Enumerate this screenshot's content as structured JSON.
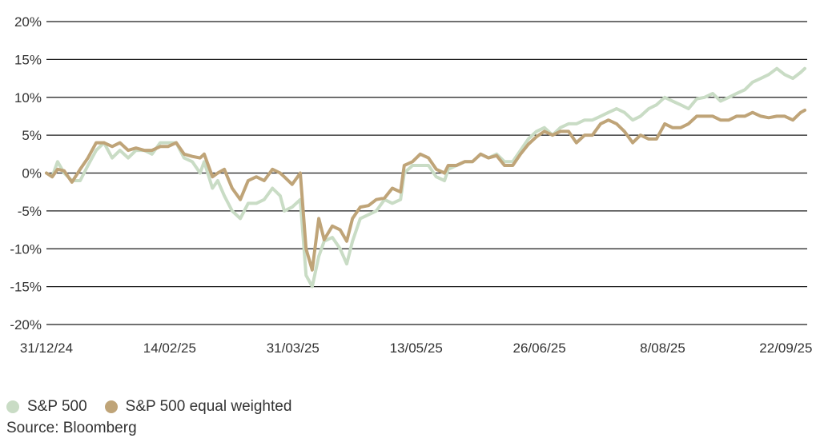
{
  "chart_data": {
    "type": "line",
    "title": "",
    "xlabel": "",
    "ylabel": "",
    "ylim": [
      -20,
      20
    ],
    "yticks": [
      20,
      15,
      10,
      5,
      0,
      -5,
      -10,
      -15,
      -20
    ],
    "ytick_labels": [
      "20%",
      "15%",
      "10%",
      "5%",
      "0%",
      "-5%",
      "-10%",
      "-15%",
      "-20%"
    ],
    "x_unit": "trading days since 31/12/24",
    "xlim": [
      0,
      184.6
    ],
    "xticks": [
      0,
      30,
      60,
      90,
      120,
      150,
      180
    ],
    "xtick_labels": [
      "31/12/24",
      "14/02/25",
      "31/03/25",
      "13/05/25",
      "26/06/25",
      "8/08/25",
      "22/09/25"
    ],
    "grid": true,
    "legend_position": "bottom-left",
    "x": [
      0,
      1.4,
      2.7,
      4.3,
      6.2,
      8.2,
      10.1,
      12.1,
      14,
      16,
      17.9,
      19.9,
      21.8,
      23.8,
      25.7,
      27.7,
      29.6,
      31.6,
      33.5,
      35.5,
      37.4,
      38.4,
      40.4,
      41.7,
      43.3,
      45.2,
      47.2,
      49.1,
      51.1,
      53,
      55,
      56.9,
      57.9,
      59.8,
      61.8,
      63.2,
      64.7,
      66.3,
      67.6,
      69.6,
      71.5,
      73.1,
      74.5,
      76.4,
      78.4,
      80.3,
      82.3,
      84.2,
      86.2,
      87.1,
      89.1,
      91,
      93,
      94.9,
      96.9,
      97.8,
      99.8,
      101.8,
      103.7,
      105.7,
      107.6,
      109.6,
      111.5,
      113.5,
      115.4,
      117.3,
      119.3,
      121.2,
      123.2,
      125.1,
      127.1,
      129,
      131,
      132.9,
      134.9,
      136.8,
      138.8,
      140.7,
      142.7,
      144.6,
      146.6,
      148.5,
      150.5,
      152.4,
      154.4,
      156.3,
      158.3,
      160.2,
      162.2,
      164.1,
      166.1,
      168,
      170,
      171.9,
      173.9,
      175.8,
      177.8,
      179.7,
      181.7,
      183.6,
      184.6
    ],
    "series": [
      {
        "name": "S&P 500",
        "color": "#c9dcc5",
        "values": [
          0,
          -0.5,
          1.5,
          0,
          -1,
          -1,
          1,
          3,
          4,
          2,
          3,
          2,
          3,
          3,
          2.5,
          4,
          4,
          4,
          2,
          1.5,
          0,
          1.5,
          -2,
          -1,
          -3,
          -5,
          -6,
          -4,
          -4,
          -3.5,
          -2,
          -3,
          -5,
          -4.5,
          -3.5,
          -13.5,
          -15,
          -11,
          -9,
          -8.5,
          -10,
          -12,
          -9,
          -6,
          -5.5,
          -5,
          -3.5,
          -4,
          -3.5,
          0,
          1,
          1,
          1,
          -0.5,
          -1,
          0.5,
          1,
          1.5,
          1.5,
          2.5,
          2,
          2.5,
          1.5,
          1.5,
          3,
          4.5,
          5.5,
          6,
          5,
          6,
          6.5,
          6.5,
          7,
          7,
          7.5,
          8,
          8.5,
          8,
          7,
          7.5,
          8.5,
          9,
          10,
          9.5,
          9,
          8.5,
          9.8,
          10,
          10.5,
          9.5,
          10,
          10.5,
          11,
          12,
          12.5,
          13,
          13.8,
          13,
          12.5,
          13.3,
          13.8
        ]
      },
      {
        "name": "S&P 500 equal weighted",
        "color": "#bfa478",
        "values": [
          0,
          -0.5,
          0.5,
          0.3,
          -1.2,
          0.5,
          2,
          4,
          4,
          3.5,
          4,
          3,
          3.3,
          3,
          3,
          3.5,
          3.5,
          4,
          2.5,
          2.2,
          2,
          2.5,
          -0.5,
          0,
          0.5,
          -2,
          -3.5,
          -1,
          -0.5,
          -1,
          0.5,
          0,
          -0.5,
          -1.5,
          0,
          -10,
          -12.8,
          -6,
          -8.8,
          -7,
          -7.5,
          -9,
          -6,
          -4.5,
          -4.3,
          -3.5,
          -3.3,
          -2,
          -2.5,
          1,
          1.5,
          2.5,
          2,
          0.5,
          0,
          1,
          1,
          1.5,
          1.5,
          2.5,
          2,
          2.3,
          1,
          1,
          2.5,
          3.8,
          4.8,
          5.5,
          5,
          5.5,
          5.5,
          4,
          5,
          5,
          6.5,
          7,
          6.5,
          5.5,
          4,
          5,
          4.5,
          4.5,
          6.5,
          6,
          6,
          6.5,
          7.5,
          7.5,
          7.5,
          7,
          7,
          7.5,
          7.5,
          8,
          7.5,
          7.3,
          7.5,
          7.5,
          7,
          8,
          8.3
        ]
      }
    ],
    "source": "Source: Bloomberg"
  }
}
